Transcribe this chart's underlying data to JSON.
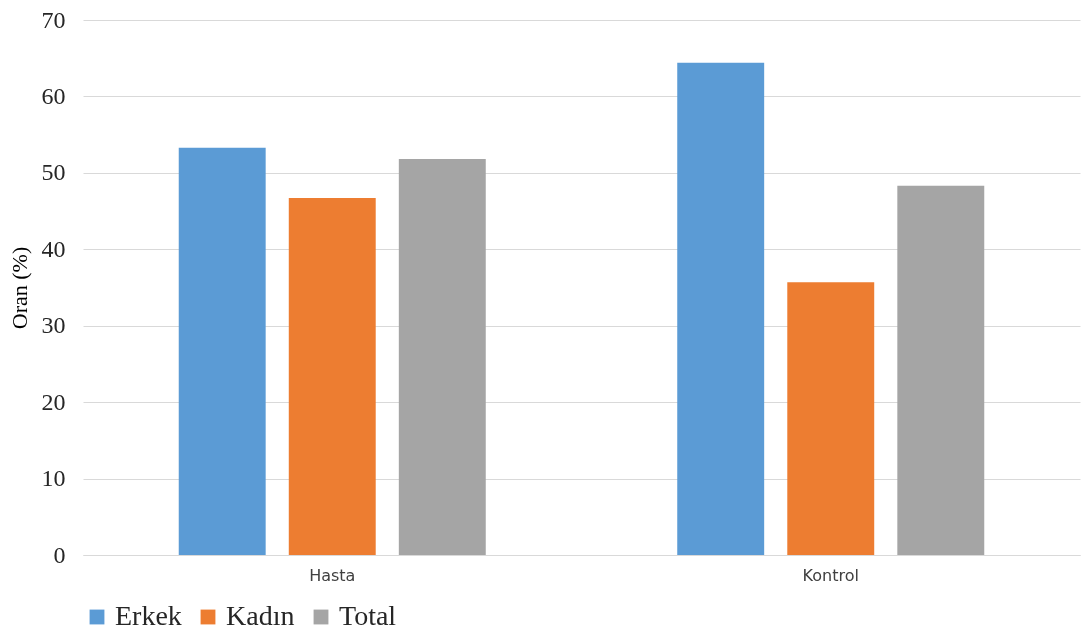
{
  "chart_data": {
    "type": "bar",
    "ylabel": "Oran (%)",
    "categories": [
      "Hasta",
      "Kontrol"
    ],
    "series": [
      {
        "name": "Erkek",
        "color": "#5b9bd5",
        "values": [
          53.3,
          64.4
        ]
      },
      {
        "name": "Kadın",
        "color": "#ed7d31",
        "values": [
          46.7,
          35.7
        ]
      },
      {
        "name": "Total",
        "color": "#a5a5a5",
        "values": [
          51.8,
          48.3
        ]
      }
    ],
    "ylim": [
      0,
      70
    ],
    "yticks": [
      0,
      10,
      20,
      30,
      40,
      50,
      60,
      70
    ],
    "grid": "y",
    "legend": "bottom"
  }
}
